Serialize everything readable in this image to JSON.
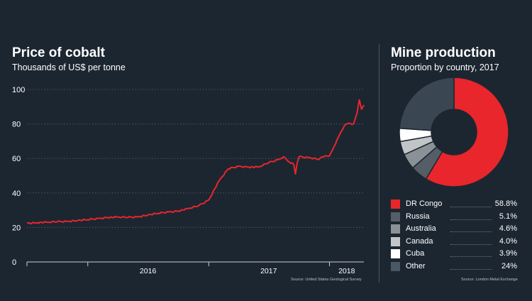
{
  "colors": {
    "background": "#1c2631",
    "line": "#e8262b",
    "grid": "#4a5663",
    "text": "#ffffff"
  },
  "left_panel": {
    "title": "Price of cobalt",
    "subtitle": "Thousands of US$ per tonne",
    "source": "Source: United States Geological Survey"
  },
  "right_panel": {
    "title": "Mine production",
    "subtitle": "Proportion by country, 2017",
    "source": "Source: London Metal Exchange"
  },
  "chart_data": [
    {
      "type": "line",
      "title": "Price of cobalt",
      "subtitle": "Thousands of US$ per tonne",
      "xlabel": "",
      "ylabel": "",
      "ylim": [
        0,
        100
      ],
      "xlim": [
        "2015-07-01",
        "2018-04-15"
      ],
      "yticks": [
        0,
        20,
        40,
        60,
        80,
        100
      ],
      "xticks": [
        "2016",
        "2017",
        "2018"
      ],
      "grid": true,
      "series": [
        {
          "color": "#e8262b",
          "points": [
            [
              "2015-07-01",
              22.5
            ],
            [
              "2015-08-01",
              22.8
            ],
            [
              "2015-09-01",
              23.0
            ],
            [
              "2015-10-01",
              23.3
            ],
            [
              "2015-11-01",
              23.6
            ],
            [
              "2015-12-01",
              24.0
            ],
            [
              "2016-01-01",
              24.5
            ],
            [
              "2016-02-01",
              25.2
            ],
            [
              "2016-03-01",
              25.8
            ],
            [
              "2016-04-01",
              26.0
            ],
            [
              "2016-05-01",
              25.8
            ],
            [
              "2016-06-01",
              26.2
            ],
            [
              "2016-07-01",
              27.2
            ],
            [
              "2016-08-01",
              28.2
            ],
            [
              "2016-09-01",
              29.0
            ],
            [
              "2016-10-01",
              29.5
            ],
            [
              "2016-11-01",
              31.0
            ],
            [
              "2016-12-01",
              32.5
            ],
            [
              "2017-01-01",
              36.0
            ],
            [
              "2017-02-01",
              47.0
            ],
            [
              "2017-03-01",
              54.0
            ],
            [
              "2017-04-01",
              55.5
            ],
            [
              "2017-05-01",
              55.0
            ],
            [
              "2017-06-01",
              55.0
            ],
            [
              "2017-07-01",
              57.5
            ],
            [
              "2017-08-01",
              59.5
            ],
            [
              "2017-08-15",
              61.0
            ],
            [
              "2017-09-01",
              58.0
            ],
            [
              "2017-09-15",
              56.5
            ],
            [
              "2017-09-20",
              51.0
            ],
            [
              "2017-09-25",
              57.0
            ],
            [
              "2017-10-01",
              61.0
            ],
            [
              "2017-11-01",
              60.5
            ],
            [
              "2017-12-01",
              59.5
            ],
            [
              "2017-12-10",
              61.0
            ],
            [
              "2018-01-01",
              61.5
            ],
            [
              "2018-01-15",
              67.0
            ],
            [
              "2018-02-01",
              74.0
            ],
            [
              "2018-02-15",
              79.0
            ],
            [
              "2018-03-01",
              80.5
            ],
            [
              "2018-03-15",
              80.0
            ],
            [
              "2018-03-25",
              86.0
            ],
            [
              "2018-04-01",
              94.0
            ],
            [
              "2018-04-08",
              88.5
            ],
            [
              "2018-04-15",
              91.0
            ]
          ]
        }
      ]
    },
    {
      "type": "pie",
      "title": "Mine production",
      "subtitle": "Proportion by country, 2017",
      "donut": true,
      "legend_position": "bottom",
      "slices": [
        {
          "label": "DR Congo",
          "value": 58.8,
          "display": "58.8%",
          "color": "#e8262b"
        },
        {
          "label": "Russia",
          "value": 5.1,
          "display": "5.1%",
          "color": "#555e67"
        },
        {
          "label": "Australia",
          "value": 4.6,
          "display": "4.6%",
          "color": "#8a9197"
        },
        {
          "label": "Canada",
          "value": 4.0,
          "display": "4.0%",
          "color": "#c1c5c8"
        },
        {
          "label": "Cuba",
          "value": 3.9,
          "display": "3.9%",
          "color": "#ffffff"
        },
        {
          "label": "Other",
          "value": 24,
          "display": "24%",
          "color": "#3a4652"
        }
      ]
    }
  ]
}
